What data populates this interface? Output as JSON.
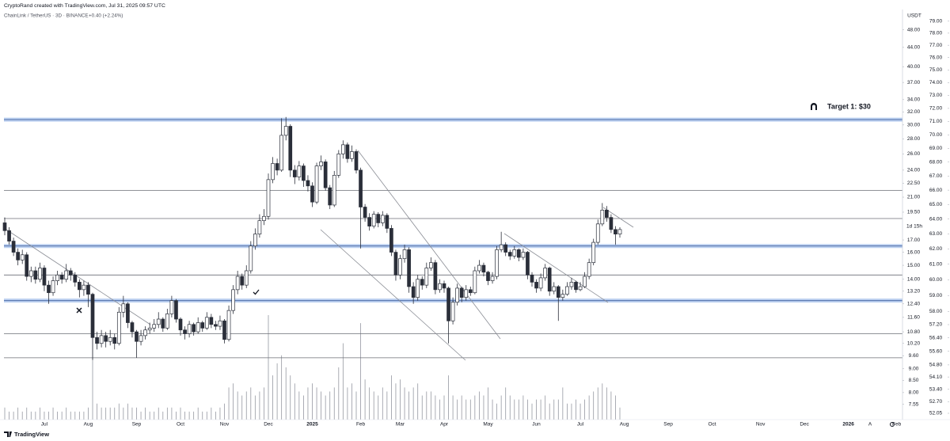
{
  "chart_data": {
    "type": "candlestick",
    "attribution": "CryptoRand created with TradingView.com, Jul 31, 2025 09:57 UTC",
    "symbol": "ChainLink / TetherUS · 3D · BINANCE",
    "change": "+0.40 (+2.24%)",
    "currency": "USDT",
    "countdown": "1d 15h",
    "annotation": "Target 1: $30",
    "brand": "TradingView",
    "auto_button": "A",
    "scale": "log",
    "grid": false,
    "up_color": "#ffffff",
    "down_color": "#2a2e39",
    "border_color": "#2a2e39",
    "volume_color": "#9598a1",
    "level_color": "#6b6e76",
    "band_color": "#bcd0f0",
    "categories": [
      null,
      null,
      null,
      null,
      null,
      null,
      null,
      null,
      null,
      "Jul",
      null,
      null,
      null,
      null,
      null,
      null,
      null,
      null,
      null,
      "Aug",
      null,
      null,
      null,
      null,
      null,
      null,
      null,
      null,
      null,
      null,
      "Sep",
      null,
      null,
      null,
      null,
      null,
      null,
      null,
      null,
      null,
      "Oct",
      null,
      null,
      null,
      null,
      null,
      null,
      null,
      null,
      null,
      "Nov",
      null,
      null,
      null,
      null,
      null,
      null,
      null,
      null,
      null,
      "Dec",
      null,
      null,
      null,
      null,
      null,
      null,
      null,
      null,
      null,
      "2025",
      null,
      null,
      null,
      null,
      null,
      null,
      null,
      null,
      null,
      null,
      "Feb",
      null,
      null,
      null,
      null,
      null,
      null,
      null,
      null,
      "Mar",
      null,
      null,
      null,
      null,
      null,
      null,
      null,
      null,
      null,
      "Apr",
      null,
      null,
      null,
      null,
      null,
      null,
      null,
      null,
      null,
      "May",
      null,
      null,
      null,
      null,
      null,
      null,
      null,
      null,
      null,
      null,
      "Jun",
      null,
      null,
      null,
      null,
      null,
      null,
      null,
      null,
      null,
      "Jul",
      null,
      null,
      null,
      null,
      null,
      null,
      null,
      null,
      null,
      "Aug",
      null,
      null,
      null,
      null,
      null,
      null,
      null,
      null,
      null,
      "Sep",
      null,
      null,
      null,
      null,
      null,
      null,
      null,
      null,
      null,
      "Oct",
      null,
      null,
      null,
      null,
      null,
      null,
      null,
      null,
      null,
      null,
      "Nov",
      null,
      null,
      null,
      null,
      null,
      null,
      null,
      null,
      null,
      "Dec",
      null,
      null,
      null,
      null,
      null,
      null,
      null,
      null,
      null,
      "2026",
      null,
      null,
      null,
      null,
      null,
      null,
      null,
      null,
      null,
      null,
      "Feb"
    ],
    "open": [
      18.5,
      17.8,
      16.9,
      16.0,
      15.4,
      15.8,
      14.2,
      14.6,
      14.0,
      14.8,
      13.6,
      13.1,
      13.9,
      14.3,
      14.0,
      14.6,
      14.3,
      13.8,
      13.3,
      13.6,
      13.0,
      10.5,
      10.2,
      10.6,
      10.3,
      10.5,
      10.2,
      11.9,
      12.4,
      11.3,
      10.8,
      10.3,
      10.6,
      10.9,
      11.0,
      11.2,
      11.5,
      11.0,
      11.8,
      12.6,
      11.5,
      10.9,
      10.7,
      11.2,
      10.8,
      11.3,
      11.0,
      11.6,
      11.2,
      11.1,
      11.4,
      10.4,
      12.0,
      13.3,
      14.2,
      13.6,
      14.6,
      16.5,
      17.5,
      18.7,
      19.1,
      22.9,
      24.8,
      24.0,
      28.5,
      29.8,
      24.0,
      23.2,
      24.5,
      22.8,
      22.2,
      20.5,
      24.5,
      25.0,
      22.0,
      20.2,
      23.4,
      26.0,
      27.2,
      25.4,
      26.3,
      24.0,
      20.0,
      19.0,
      18.2,
      19.3,
      18.5,
      19.2,
      18.0,
      16.0,
      14.3,
      15.5,
      16.2,
      13.5,
      12.8,
      14.0,
      13.6,
      14.8,
      15.2,
      13.3,
      13.7,
      13.4,
      11.4,
      12.5,
      13.4,
      12.8,
      13.3,
      13.1,
      14.6,
      15.0,
      14.5,
      13.9,
      14.2,
      16.2,
      16.6,
      16.0,
      15.7,
      16.2,
      15.6,
      16.0,
      14.3,
      13.8,
      13.4,
      14.1,
      14.8,
      13.2,
      13.5,
      12.8,
      13.0,
      13.5,
      13.8,
      13.3,
      13.5,
      14.2,
      15.2,
      16.8,
      18.4,
      19.7,
      19.0,
      17.9,
      17.5,
      null,
      null,
      null,
      null,
      null,
      null,
      null,
      null,
      null,
      null,
      null,
      null,
      null,
      null,
      null,
      null,
      null,
      null,
      null,
      null,
      null,
      null,
      null,
      null,
      null,
      null,
      null,
      null,
      null,
      null,
      null,
      null,
      null,
      null,
      null,
      null,
      null,
      null,
      null,
      null,
      null,
      null,
      null,
      null,
      null,
      null,
      null,
      null,
      null,
      null,
      null,
      null,
      null,
      null,
      null,
      null,
      null,
      null,
      null,
      null,
      null,
      null,
      null
    ],
    "high": [
      19.0,
      18.1,
      17.2,
      16.3,
      16.2,
      16.0,
      14.9,
      14.9,
      15.2,
      15.0,
      13.9,
      14.2,
      14.6,
      14.5,
      15.1,
      14.8,
      14.5,
      14.0,
      13.9,
      13.8,
      13.1,
      10.8,
      10.9,
      10.8,
      10.9,
      10.7,
      12.2,
      12.9,
      12.5,
      11.4,
      10.9,
      10.9,
      11.1,
      11.3,
      11.5,
      11.9,
      11.6,
      12.1,
      12.9,
      12.7,
      11.6,
      11.1,
      11.4,
      11.3,
      11.6,
      11.4,
      11.9,
      11.8,
      11.4,
      11.7,
      11.5,
      12.3,
      13.6,
      14.6,
      14.4,
      15.0,
      16.9,
      18.0,
      19.3,
      19.8,
      23.6,
      25.6,
      25.4,
      31.0,
      31.2,
      30.1,
      24.6,
      25.1,
      24.8,
      23.4,
      22.6,
      24.9,
      25.8,
      25.3,
      22.3,
      23.9,
      26.5,
      27.8,
      27.5,
      27.1,
      26.6,
      24.3,
      20.3,
      19.4,
      19.6,
      19.5,
      19.6,
      19.4,
      18.3,
      16.2,
      15.8,
      16.6,
      16.4,
      13.8,
      14.3,
      14.2,
      15.2,
      15.6,
      15.4,
      14.0,
      13.9,
      13.5,
      12.8,
      13.7,
      13.5,
      13.6,
      13.5,
      14.9,
      15.4,
      15.2,
      14.6,
      14.5,
      16.5,
      17.7,
      16.8,
      16.2,
      16.5,
      16.3,
      16.3,
      16.1,
      14.5,
      14.0,
      14.4,
      15.1,
      14.9,
      13.8,
      13.6,
      13.3,
      13.8,
      14.1,
      13.9,
      13.8,
      14.5,
      15.5,
      17.1,
      18.8,
      20.4,
      20.1,
      19.3,
      18.2,
      18.1,
      null,
      null,
      null,
      null,
      null,
      null,
      null,
      null,
      null,
      null,
      null,
      null,
      null,
      null,
      null,
      null,
      null,
      null,
      null,
      null,
      null,
      null,
      null,
      null,
      null,
      null,
      null,
      null,
      null,
      null,
      null,
      null,
      null,
      null,
      null,
      null,
      null,
      null,
      null,
      null,
      null,
      null,
      null,
      null,
      null,
      null,
      null,
      null,
      null,
      null,
      null,
      null,
      null,
      null,
      null,
      null,
      null,
      null,
      null,
      null,
      null,
      null,
      null
    ],
    "low": [
      17.4,
      16.6,
      15.7,
      15.0,
      15.1,
      13.9,
      13.8,
      13.7,
      13.8,
      13.2,
      12.4,
      12.9,
      13.6,
      13.7,
      13.8,
      13.9,
      13.5,
      12.8,
      12.9,
      12.2,
      9.4,
      9.9,
      10.0,
      10.0,
      10.1,
      9.9,
      10.1,
      11.6,
      11.0,
      10.5,
      9.5,
      10.1,
      10.4,
      10.7,
      10.8,
      11.0,
      10.8,
      10.9,
      11.6,
      11.3,
      10.6,
      10.4,
      10.5,
      10.6,
      10.7,
      10.8,
      10.9,
      11.0,
      10.9,
      10.9,
      10.2,
      10.3,
      11.8,
      13.0,
      13.3,
      13.4,
      14.4,
      16.2,
      17.2,
      18.3,
      18.8,
      22.5,
      23.4,
      23.8,
      27.8,
      23.2,
      22.4,
      22.8,
      22.1,
      21.6,
      20.0,
      20.3,
      24.0,
      21.7,
      19.8,
      20.0,
      23.1,
      25.4,
      24.9,
      25.0,
      23.6,
      16.3,
      18.6,
      17.8,
      18.0,
      18.1,
      18.2,
      17.6,
      15.7,
      13.9,
      14.0,
      15.2,
      13.1,
      12.4,
      12.6,
      13.3,
      13.4,
      14.6,
      13.0,
      13.1,
      13.1,
      10.2,
      11.2,
      12.3,
      12.5,
      12.6,
      12.9,
      13.0,
      14.4,
      14.2,
      13.6,
      13.7,
      14.0,
      16.0,
      15.7,
      15.4,
      15.5,
      15.3,
      15.4,
      14.0,
      13.5,
      13.1,
      13.2,
      13.9,
      12.9,
      13.0,
      11.4,
      12.6,
      12.9,
      13.3,
      13.1,
      13.2,
      13.4,
      14.0,
      15.0,
      16.6,
      18.2,
      18.6,
      17.6,
      16.6,
      17.2,
      null,
      null,
      null,
      null,
      null,
      null,
      null,
      null,
      null,
      null,
      null,
      null,
      null,
      null,
      null,
      null,
      null,
      null,
      null,
      null,
      null,
      null,
      null,
      null,
      null,
      null,
      null,
      null,
      null,
      null,
      null,
      null,
      null,
      null,
      null,
      null,
      null,
      null,
      null,
      null,
      null,
      null,
      null,
      null,
      null,
      null,
      null,
      null,
      null,
      null,
      null,
      null,
      null,
      null,
      null,
      null,
      null,
      null,
      null,
      null,
      null,
      null,
      null
    ],
    "close": [
      17.8,
      16.9,
      16.0,
      15.4,
      15.8,
      14.2,
      14.6,
      14.0,
      14.8,
      13.6,
      13.1,
      13.9,
      14.3,
      14.0,
      14.6,
      14.3,
      13.8,
      13.3,
      13.6,
      13.0,
      10.5,
      10.2,
      10.6,
      10.3,
      10.5,
      10.2,
      11.9,
      12.4,
      11.3,
      10.8,
      10.3,
      10.6,
      10.9,
      11.0,
      11.2,
      11.5,
      11.0,
      11.8,
      12.6,
      11.5,
      10.9,
      10.7,
      11.2,
      10.8,
      11.3,
      11.0,
      11.6,
      11.2,
      11.1,
      11.4,
      10.4,
      12.0,
      13.3,
      14.2,
      13.6,
      14.6,
      16.5,
      17.5,
      18.7,
      19.1,
      22.9,
      24.8,
      24.0,
      28.5,
      29.8,
      24.0,
      23.2,
      24.5,
      22.8,
      22.2,
      20.5,
      24.5,
      25.0,
      22.0,
      20.2,
      23.4,
      26.0,
      27.2,
      25.4,
      26.3,
      24.0,
      20.0,
      19.0,
      18.2,
      19.3,
      18.5,
      19.2,
      18.0,
      16.0,
      14.3,
      15.5,
      16.2,
      13.5,
      12.8,
      14.0,
      13.6,
      14.8,
      15.2,
      13.3,
      13.7,
      13.4,
      11.4,
      12.5,
      13.4,
      12.8,
      13.3,
      13.1,
      14.6,
      15.0,
      14.5,
      13.9,
      14.2,
      16.2,
      16.6,
      16.0,
      15.7,
      16.2,
      15.6,
      16.0,
      14.3,
      13.8,
      13.4,
      14.1,
      14.8,
      13.2,
      13.5,
      12.8,
      13.0,
      13.5,
      13.8,
      13.3,
      13.5,
      14.2,
      15.2,
      16.8,
      18.4,
      19.7,
      19.0,
      17.9,
      17.5,
      17.9,
      null,
      null,
      null,
      null,
      null,
      null,
      null,
      null,
      null,
      null,
      null,
      null,
      null,
      null,
      null,
      null,
      null,
      null,
      null,
      null,
      null,
      null,
      null,
      null,
      null,
      null,
      null,
      null,
      null,
      null,
      null,
      null,
      null,
      null,
      null,
      null,
      null,
      null,
      null,
      null,
      null,
      null,
      null,
      null,
      null,
      null,
      null,
      null,
      null,
      null,
      null,
      null,
      null,
      null,
      null,
      null,
      null,
      null,
      null,
      null,
      null,
      null,
      null
    ],
    "volume": [
      3,
      2,
      2,
      3,
      2,
      3,
      2,
      2,
      3,
      2,
      2,
      3,
      2,
      2,
      3,
      2,
      2,
      2,
      2,
      3,
      26,
      4,
      3,
      3,
      3,
      3,
      4,
      3,
      4,
      3,
      3,
      2,
      3,
      2,
      2,
      3,
      2,
      3,
      3,
      2,
      3,
      2,
      2,
      2,
      3,
      2,
      2,
      3,
      2,
      3,
      4,
      8,
      9,
      7,
      6,
      7,
      8,
      6,
      7,
      8,
      26,
      11,
      14,
      16,
      13,
      11,
      9,
      7,
      6,
      8,
      9,
      8,
      7,
      6,
      7,
      8,
      13,
      19,
      8,
      9,
      7,
      24,
      10,
      8,
      7,
      6,
      8,
      7,
      11,
      9,
      10,
      8,
      7,
      8,
      9,
      6,
      7,
      7,
      6,
      5,
      6,
      11,
      6,
      5,
      6,
      5,
      5,
      6,
      7,
      6,
      8,
      5,
      4,
      6,
      8,
      6,
      5,
      5,
      6,
      5,
      4,
      5,
      5,
      6,
      4,
      5,
      5,
      8,
      4,
      4,
      5,
      4,
      5,
      6,
      7,
      8,
      9,
      8,
      7,
      6,
      3,
      null,
      null,
      null,
      null,
      null,
      null,
      null,
      null,
      null,
      null,
      null,
      null,
      null,
      null,
      null,
      null,
      null,
      null,
      null,
      null,
      null,
      null,
      null,
      null,
      null,
      null,
      null,
      null,
      null,
      null,
      null,
      null,
      null,
      null,
      null,
      null,
      null,
      null,
      null,
      null,
      null,
      null,
      null,
      null,
      null,
      null,
      null,
      null,
      null,
      null,
      null,
      null,
      null,
      null,
      null,
      null,
      null,
      null,
      null,
      null,
      null,
      null,
      null
    ],
    "levels": [
      {
        "price": 30.8,
        "band": true
      },
      {
        "price": 21.7,
        "band": false
      },
      {
        "price": 18.9,
        "band": false
      },
      {
        "price": 16.5,
        "band": true
      },
      {
        "price": 14.3,
        "band": false
      },
      {
        "price": 12.6,
        "band": true
      },
      {
        "price": 10.7,
        "band": false
      },
      {
        "price": 9.5,
        "band": false
      }
    ],
    "ylim": [
      7.0,
      55.6
    ],
    "yticks": [
      {
        "value": 48,
        "label": "48.00"
      },
      {
        "value": 44,
        "label": "44.00"
      },
      {
        "value": 40,
        "label": "40.00"
      },
      {
        "value": 37,
        "label": "37.00"
      },
      {
        "value": 34,
        "label": "34.00"
      },
      {
        "value": 32,
        "label": "32.00"
      },
      {
        "value": 30,
        "label": "30.00"
      },
      {
        "value": 28,
        "label": "28.00"
      },
      {
        "value": 26,
        "label": "26.00"
      },
      {
        "value": 24,
        "label": "24.00"
      },
      {
        "value": 22.5,
        "label": "22.50"
      },
      {
        "value": 21,
        "label": "21.00"
      },
      {
        "value": 19.5,
        "label": "19.50"
      },
      {
        "value": 17,
        "label": "17.00"
      },
      {
        "value": 16,
        "label": "16.00"
      },
      {
        "value": 15,
        "label": "15.00"
      },
      {
        "value": 14,
        "label": "14.00"
      },
      {
        "value": 13.2,
        "label": "13.20"
      },
      {
        "value": 12.4,
        "label": "12.40"
      },
      {
        "value": 11.6,
        "label": "11.60"
      },
      {
        "value": 10.8,
        "label": "10.80"
      },
      {
        "value": 10.2,
        "label": "10.20"
      },
      {
        "value": 9.6,
        "label": "9.60"
      },
      {
        "value": 9,
        "label": "9.00"
      },
      {
        "value": 8.5,
        "label": "8.50"
      },
      {
        "value": 8,
        "label": "8.00"
      },
      {
        "value": 7.55,
        "label": "7.55"
      }
    ],
    "y2lim": [
      51.7,
      80.8
    ],
    "y2ticks": [
      {
        "value": 79,
        "label": "79.00"
      },
      {
        "value": 78,
        "label": "78.00"
      },
      {
        "value": 77,
        "label": "77.00"
      },
      {
        "value": 76,
        "label": "76.00"
      },
      {
        "value": 75,
        "label": "75.00"
      },
      {
        "value": 74,
        "label": "74.00"
      },
      {
        "value": 73,
        "label": "73.00"
      },
      {
        "value": 72,
        "label": "72.00"
      },
      {
        "value": 71,
        "label": "71.00"
      },
      {
        "value": 70,
        "label": "70.00"
      },
      {
        "value": 69,
        "label": "69.00"
      },
      {
        "value": 68,
        "label": "68.00"
      },
      {
        "value": 67,
        "label": "67.00"
      },
      {
        "value": 66,
        "label": "66.00"
      },
      {
        "value": 65,
        "label": "65.00"
      },
      {
        "value": 64,
        "label": "64.00"
      },
      {
        "value": 63,
        "label": "63.00"
      },
      {
        "value": 62,
        "label": "62.00"
      },
      {
        "value": 61,
        "label": "61.00"
      },
      {
        "value": 60,
        "label": "60.00"
      },
      {
        "value": 59,
        "label": "59.00"
      },
      {
        "value": 58,
        "label": "58.00"
      },
      {
        "value": 57.2,
        "label": "57.20"
      },
      {
        "value": 56.4,
        "label": "56.40"
      },
      {
        "value": 55.6,
        "label": "55.60"
      },
      {
        "value": 54.8,
        "label": "54.80"
      },
      {
        "value": 54.1,
        "label": "54.10"
      },
      {
        "value": 53.4,
        "label": "53.40"
      },
      {
        "value": 52.7,
        "label": "52.70"
      },
      {
        "value": 52.05,
        "label": "52.05"
      }
    ]
  }
}
